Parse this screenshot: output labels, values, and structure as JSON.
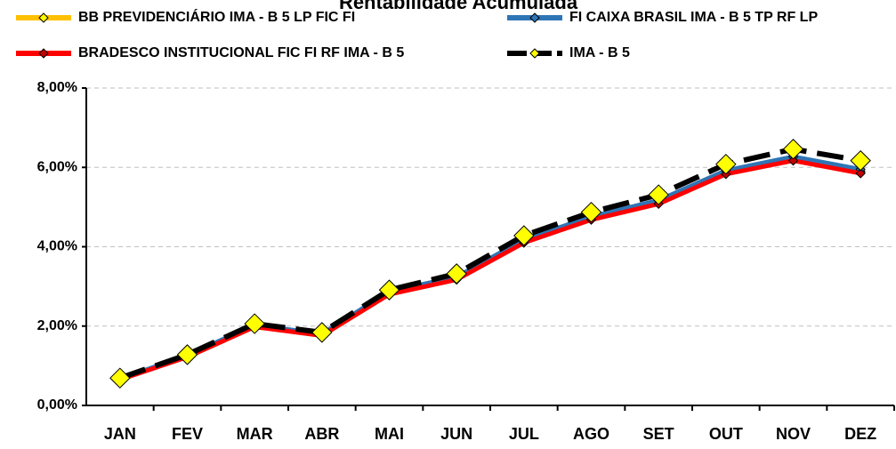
{
  "chart_data": {
    "type": "line",
    "title": "Rentabilidade Acumulada",
    "categories": [
      "JAN",
      "FEV",
      "MAR",
      "ABR",
      "MAI",
      "JUN",
      "JUL",
      "AGO",
      "SET",
      "OUT",
      "NOV",
      "DEZ"
    ],
    "series": [
      {
        "name": "BB PREVIDENCIÁRIO IMA - B 5 LP FIC FI",
        "color": "#ffc000",
        "marker_color": "#ffff00",
        "dashed": false,
        "values": [
          0.66,
          1.24,
          2.0,
          1.78,
          2.83,
          3.2,
          4.13,
          4.71,
          5.12,
          5.87,
          6.21,
          5.89
        ]
      },
      {
        "name": "FI CAIXA BRASIL IMA - B 5 TP RF LP",
        "color": "#2e75b6",
        "marker_color": "#2e75b6",
        "dashed": false,
        "values": [
          0.67,
          1.26,
          2.03,
          1.8,
          2.87,
          3.24,
          4.18,
          4.76,
          5.17,
          5.92,
          6.27,
          5.95
        ]
      },
      {
        "name": "BRADESCO INSTITUCIONAL FIC FI RF IMA - B 5",
        "color": "#ff0000",
        "marker_color": "#c00000",
        "dashed": false,
        "values": [
          0.65,
          1.22,
          1.98,
          1.76,
          2.8,
          3.17,
          4.1,
          4.68,
          5.08,
          5.83,
          6.17,
          5.85
        ]
      },
      {
        "name": "IMA - B 5",
        "color": "#000000",
        "marker_color": "#ffff00",
        "dashed": true,
        "values": [
          0.69,
          1.28,
          2.06,
          1.84,
          2.91,
          3.32,
          4.28,
          4.87,
          5.31,
          6.08,
          6.46,
          6.17
        ]
      }
    ],
    "ylim": [
      0,
      8
    ],
    "yticks": [
      {
        "value": 0,
        "label": "0,00%"
      },
      {
        "value": 2,
        "label": "2,00%"
      },
      {
        "value": 4,
        "label": "4,00%"
      },
      {
        "value": 6,
        "label": "6,00%"
      },
      {
        "value": 8,
        "label": "8,00%"
      }
    ],
    "grid": true
  }
}
